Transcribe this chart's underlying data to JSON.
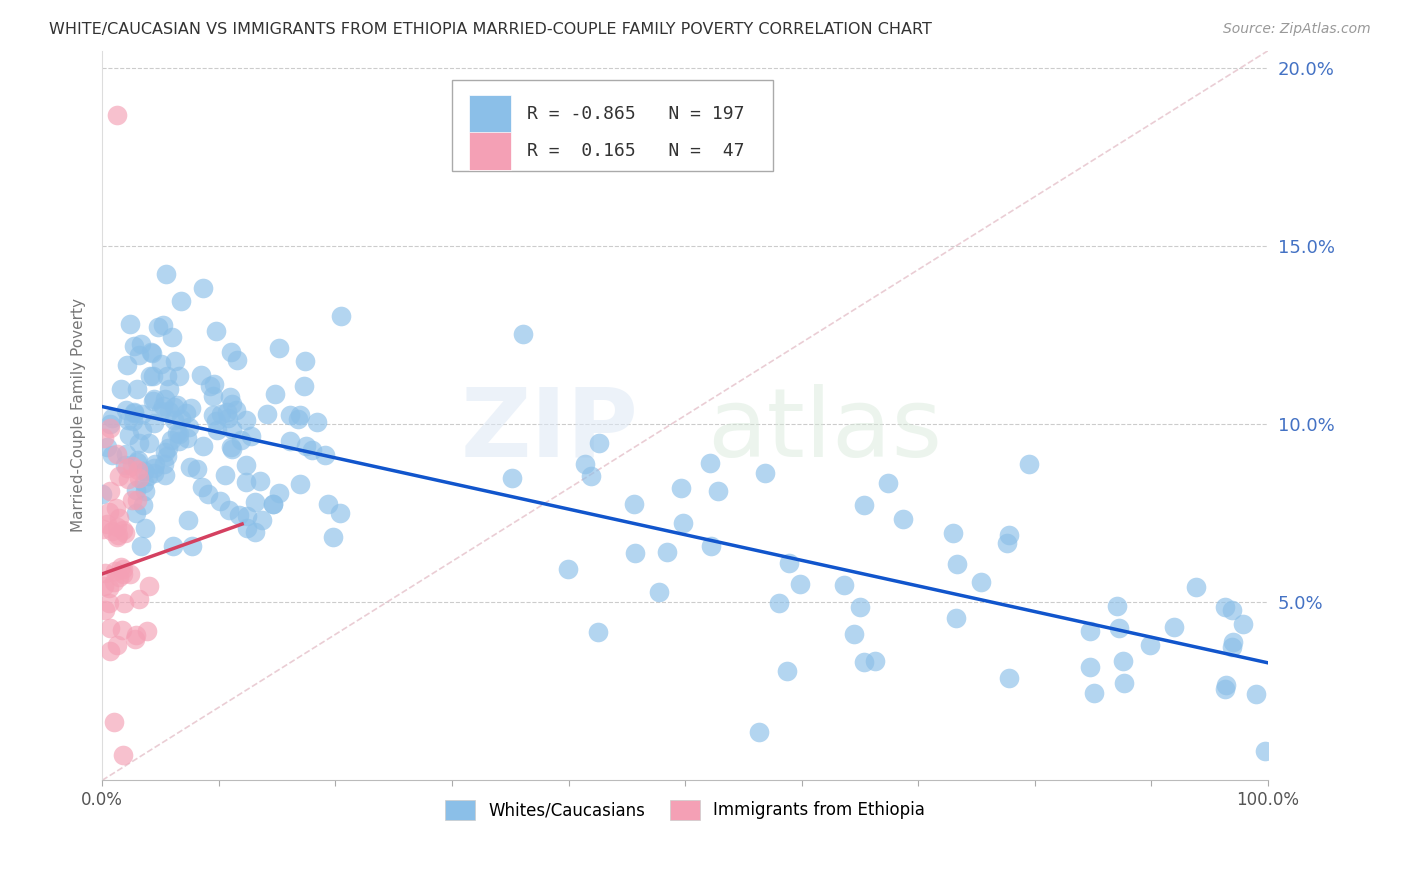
{
  "title": "WHITE/CAUCASIAN VS IMMIGRANTS FROM ETHIOPIA MARRIED-COUPLE FAMILY POVERTY CORRELATION CHART",
  "source": "Source: ZipAtlas.com",
  "ylabel": "Married-Couple Family Poverty",
  "xlabel": "",
  "legend_blue_label": "Whites/Caucasians",
  "legend_pink_label": "Immigrants from Ethiopia",
  "xlim": [
    0,
    1.0
  ],
  "ylim": [
    0,
    0.205
  ],
  "yticks": [
    0.05,
    0.1,
    0.15,
    0.2
  ],
  "blue_color": "#8bbfe8",
  "pink_color": "#f4a0b5",
  "blue_line_color": "#1155cc",
  "pink_line_color": "#d44060",
  "diag_line_color": "#e8c8d0",
  "background_color": "#ffffff",
  "blue_line_x0": 0.0,
  "blue_line_x1": 1.0,
  "blue_line_y0": 0.105,
  "blue_line_y1": 0.033,
  "pink_line_x0": 0.0,
  "pink_line_x1": 0.12,
  "pink_line_y0": 0.058,
  "pink_line_y1": 0.072
}
